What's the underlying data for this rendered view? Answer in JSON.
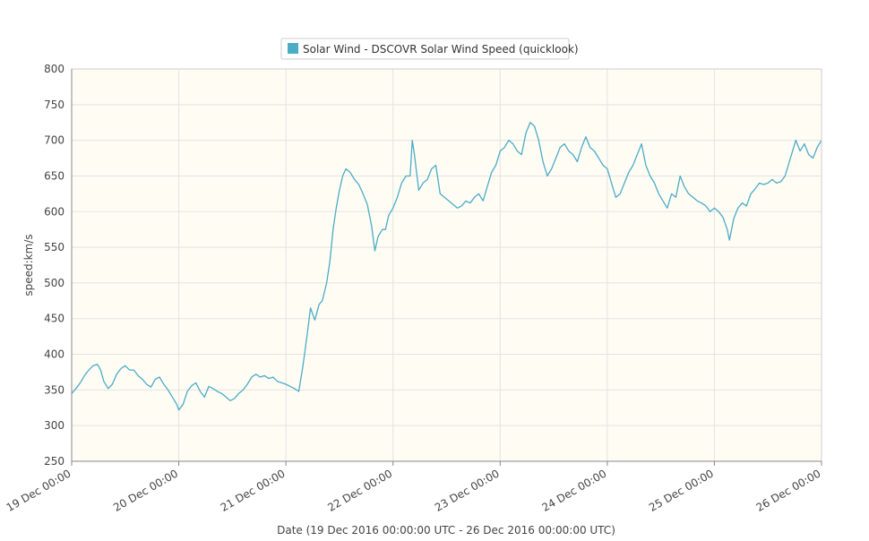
{
  "chart_data": {
    "type": "line",
    "title": "",
    "legend": {
      "placement": "top-center",
      "label": "Solar Wind - DSCOVR Solar Wind Speed (quicklook)",
      "color": "#4bacc6"
    },
    "xlabel": "Date (19 Dec 2016 00:00:00 UTC - 26 Dec 2016 00:00:00 UTC)",
    "ylabel": "speed:km/s",
    "ylim": [
      250,
      800
    ],
    "yticks": [
      250,
      300,
      350,
      400,
      450,
      500,
      550,
      600,
      650,
      700,
      750,
      800
    ],
    "xlim": [
      "19 Dec 00:00",
      "26 Dec 00:00"
    ],
    "xticks": [
      "19 Dec 00:00",
      "20 Dec 00:00",
      "21 Dec 00:00",
      "22 Dec 00:00",
      "23 Dec 00:00",
      "24 Dec 00:00",
      "25 Dec 00:00",
      "26 Dec 00:00"
    ],
    "grid": true,
    "plot_background": "#fffcf4",
    "series": [
      {
        "color": "#4bacc6",
        "x_unit": "days since 19 Dec 00:00 UTC",
        "points": [
          [
            0.0,
            345
          ],
          [
            0.04,
            352
          ],
          [
            0.08,
            360
          ],
          [
            0.12,
            370
          ],
          [
            0.16,
            378
          ],
          [
            0.2,
            384
          ],
          [
            0.24,
            386
          ],
          [
            0.27,
            378
          ],
          [
            0.3,
            362
          ],
          [
            0.34,
            352
          ],
          [
            0.38,
            358
          ],
          [
            0.42,
            372
          ],
          [
            0.46,
            380
          ],
          [
            0.5,
            384
          ],
          [
            0.54,
            378
          ],
          [
            0.58,
            378
          ],
          [
            0.62,
            370
          ],
          [
            0.66,
            365
          ],
          [
            0.7,
            358
          ],
          [
            0.74,
            354
          ],
          [
            0.78,
            365
          ],
          [
            0.82,
            368
          ],
          [
            0.86,
            358
          ],
          [
            0.9,
            350
          ],
          [
            0.94,
            340
          ],
          [
            0.98,
            330
          ],
          [
            1.0,
            322
          ],
          [
            1.04,
            330
          ],
          [
            1.08,
            348
          ],
          [
            1.12,
            356
          ],
          [
            1.16,
            360
          ],
          [
            1.2,
            348
          ],
          [
            1.24,
            340
          ],
          [
            1.28,
            355
          ],
          [
            1.32,
            352
          ],
          [
            1.36,
            348
          ],
          [
            1.4,
            345
          ],
          [
            1.44,
            340
          ],
          [
            1.48,
            335
          ],
          [
            1.52,
            338
          ],
          [
            1.56,
            345
          ],
          [
            1.6,
            350
          ],
          [
            1.64,
            358
          ],
          [
            1.68,
            368
          ],
          [
            1.72,
            372
          ],
          [
            1.76,
            368
          ],
          [
            1.8,
            370
          ],
          [
            1.84,
            366
          ],
          [
            1.88,
            368
          ],
          [
            1.92,
            362
          ],
          [
            1.96,
            360
          ],
          [
            2.0,
            358
          ],
          [
            2.04,
            355
          ],
          [
            2.08,
            352
          ],
          [
            2.12,
            348
          ],
          [
            2.16,
            385
          ],
          [
            2.2,
            430
          ],
          [
            2.23,
            465
          ],
          [
            2.27,
            448
          ],
          [
            2.31,
            470
          ],
          [
            2.34,
            475
          ],
          [
            2.38,
            500
          ],
          [
            2.41,
            530
          ],
          [
            2.44,
            575
          ],
          [
            2.47,
            605
          ],
          [
            2.5,
            630
          ],
          [
            2.53,
            650
          ],
          [
            2.56,
            660
          ],
          [
            2.6,
            655
          ],
          [
            2.64,
            645
          ],
          [
            2.68,
            638
          ],
          [
            2.72,
            625
          ],
          [
            2.76,
            610
          ],
          [
            2.8,
            580
          ],
          [
            2.83,
            545
          ],
          [
            2.86,
            565
          ],
          [
            2.9,
            575
          ],
          [
            2.93,
            575
          ],
          [
            2.96,
            595
          ],
          [
            3.0,
            605
          ],
          [
            3.04,
            620
          ],
          [
            3.08,
            640
          ],
          [
            3.12,
            650
          ],
          [
            3.16,
            650
          ],
          [
            3.18,
            700
          ],
          [
            3.2,
            680
          ],
          [
            3.24,
            630
          ],
          [
            3.28,
            640
          ],
          [
            3.32,
            645
          ],
          [
            3.36,
            660
          ],
          [
            3.4,
            665
          ],
          [
            3.44,
            625
          ],
          [
            3.48,
            620
          ],
          [
            3.52,
            615
          ],
          [
            3.56,
            610
          ],
          [
            3.6,
            605
          ],
          [
            3.64,
            608
          ],
          [
            3.68,
            615
          ],
          [
            3.72,
            612
          ],
          [
            3.76,
            620
          ],
          [
            3.8,
            625
          ],
          [
            3.84,
            615
          ],
          [
            3.88,
            635
          ],
          [
            3.92,
            655
          ],
          [
            3.96,
            665
          ],
          [
            4.0,
            685
          ],
          [
            4.04,
            690
          ],
          [
            4.08,
            700
          ],
          [
            4.12,
            695
          ],
          [
            4.16,
            685
          ],
          [
            4.2,
            680
          ],
          [
            4.24,
            710
          ],
          [
            4.28,
            725
          ],
          [
            4.32,
            720
          ],
          [
            4.36,
            700
          ],
          [
            4.4,
            670
          ],
          [
            4.44,
            650
          ],
          [
            4.48,
            660
          ],
          [
            4.52,
            675
          ],
          [
            4.56,
            690
          ],
          [
            4.6,
            695
          ],
          [
            4.64,
            685
          ],
          [
            4.68,
            680
          ],
          [
            4.72,
            670
          ],
          [
            4.76,
            690
          ],
          [
            4.8,
            705
          ],
          [
            4.84,
            690
          ],
          [
            4.88,
            685
          ],
          [
            4.92,
            675
          ],
          [
            4.96,
            665
          ],
          [
            5.0,
            660
          ],
          [
            5.04,
            640
          ],
          [
            5.08,
            620
          ],
          [
            5.12,
            625
          ],
          [
            5.16,
            640
          ],
          [
            5.2,
            655
          ],
          [
            5.24,
            665
          ],
          [
            5.28,
            680
          ],
          [
            5.32,
            695
          ],
          [
            5.36,
            665
          ],
          [
            5.4,
            650
          ],
          [
            5.44,
            640
          ],
          [
            5.48,
            625
          ],
          [
            5.52,
            615
          ],
          [
            5.56,
            605
          ],
          [
            5.6,
            625
          ],
          [
            5.64,
            620
          ],
          [
            5.68,
            650
          ],
          [
            5.72,
            635
          ],
          [
            5.76,
            625
          ],
          [
            5.8,
            620
          ],
          [
            5.84,
            615
          ],
          [
            5.88,
            612
          ],
          [
            5.92,
            608
          ],
          [
            5.96,
            600
          ],
          [
            6.0,
            605
          ],
          [
            6.04,
            600
          ],
          [
            6.08,
            592
          ],
          [
            6.12,
            575
          ],
          [
            6.14,
            560
          ],
          [
            6.18,
            590
          ],
          [
            6.22,
            605
          ],
          [
            6.26,
            612
          ],
          [
            6.3,
            608
          ],
          [
            6.34,
            625
          ],
          [
            6.38,
            632
          ],
          [
            6.42,
            640
          ],
          [
            6.46,
            638
          ],
          [
            6.5,
            640
          ],
          [
            6.54,
            645
          ],
          [
            6.58,
            640
          ],
          [
            6.62,
            642
          ],
          [
            6.66,
            650
          ],
          [
            6.7,
            670
          ],
          [
            6.74,
            690
          ],
          [
            6.76,
            700
          ],
          [
            6.8,
            685
          ],
          [
            6.84,
            695
          ],
          [
            6.88,
            680
          ],
          [
            6.92,
            675
          ],
          [
            6.96,
            690
          ],
          [
            7.0,
            700
          ]
        ]
      }
    ]
  }
}
